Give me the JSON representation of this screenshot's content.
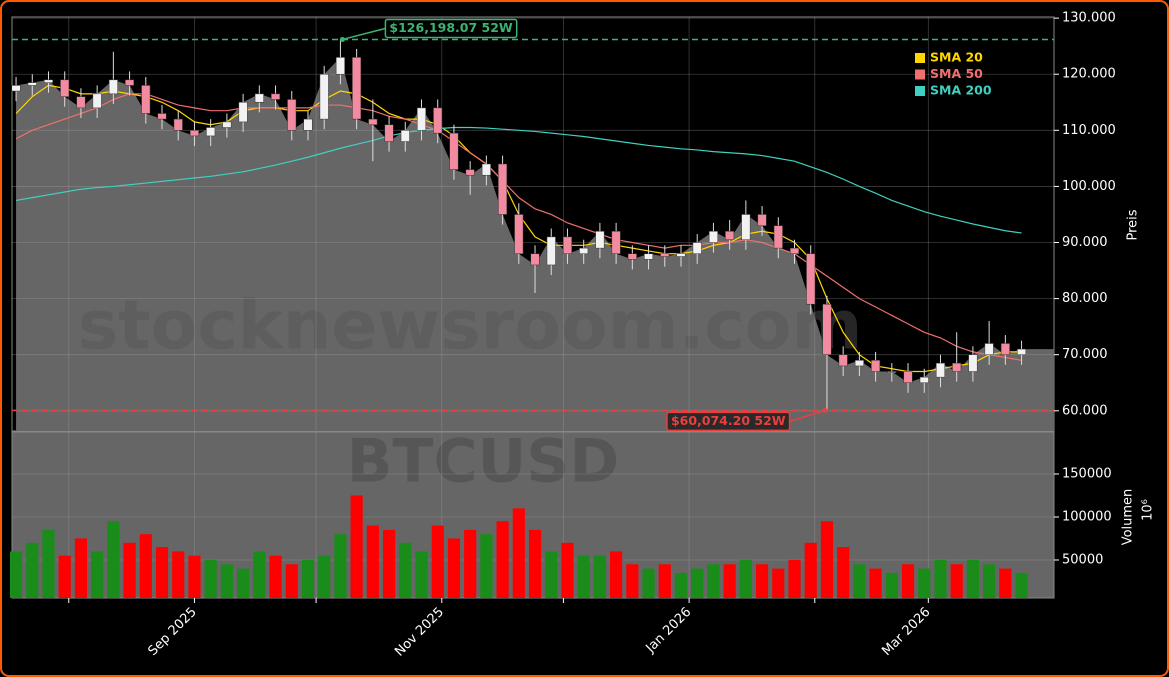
{
  "chart_data": {
    "type": "candlestick",
    "watermark": [
      "stocknewsroom.com",
      "BTCUSD"
    ],
    "y_label": "Preis",
    "x": [
      "2025-07-19",
      "2025-07-23",
      "2025-07-27",
      "2025-07-31",
      "2025-08-04",
      "2025-08-08",
      "2025-08-12",
      "2025-08-16",
      "2025-08-20",
      "2025-08-24",
      "2025-08-28",
      "2025-09-01",
      "2025-09-05",
      "2025-09-09",
      "2025-09-13",
      "2025-09-17",
      "2025-09-21",
      "2025-09-25",
      "2025-09-29",
      "2025-10-03",
      "2025-10-07",
      "2025-10-11",
      "2025-10-15",
      "2025-10-19",
      "2025-10-23",
      "2025-10-27",
      "2025-10-31",
      "2025-11-04",
      "2025-11-08",
      "2025-11-12",
      "2025-11-16",
      "2025-11-20",
      "2025-11-24",
      "2025-11-28",
      "2025-12-02",
      "2025-12-06",
      "2025-12-10",
      "2025-12-14",
      "2025-12-18",
      "2025-12-22",
      "2025-12-26",
      "2025-12-30",
      "2026-01-03",
      "2026-01-07",
      "2026-01-11",
      "2026-01-15",
      "2026-01-19",
      "2026-01-23",
      "2026-01-27",
      "2026-01-31",
      "2026-02-04",
      "2026-02-08",
      "2026-02-12",
      "2026-02-16",
      "2026-02-20",
      "2026-02-24",
      "2026-02-28",
      "2026-03-04",
      "2026-03-08",
      "2026-03-12",
      "2026-03-16",
      "2026-03-20",
      "2026-03-24"
    ],
    "open": [
      117000,
      118000,
      118500,
      119000,
      116000,
      114000,
      116500,
      119000,
      118000,
      113000,
      112000,
      110000,
      109000,
      110500,
      111500,
      115000,
      116500,
      115500,
      110000,
      112000,
      120000,
      123000,
      112000,
      111000,
      108000,
      110000,
      114000,
      109500,
      103000,
      102000,
      104000,
      95000,
      88000,
      86000,
      91000,
      88000,
      89000,
      92000,
      88000,
      87000,
      88000,
      87500,
      88000,
      90000,
      92000,
      90500,
      95000,
      93000,
      89000,
      88000,
      79000,
      70000,
      68000,
      69000,
      67000,
      67000,
      65000,
      66000,
      68500,
      67000,
      70000,
      72000,
      70000
    ],
    "high": [
      119500,
      120000,
      120500,
      120500,
      117500,
      118000,
      124000,
      120500,
      119500,
      114500,
      113500,
      111500,
      112000,
      113000,
      116500,
      118000,
      118000,
      117000,
      113500,
      121500,
      126198.07,
      124500,
      115500,
      112500,
      111500,
      115500,
      115500,
      111000,
      104500,
      105500,
      105500,
      97000,
      89500,
      92500,
      92500,
      90500,
      93500,
      93500,
      89500,
      89500,
      89500,
      89500,
      91500,
      93500,
      94000,
      97500,
      96500,
      94500,
      90500,
      89500,
      80500,
      71500,
      70500,
      70500,
      68500,
      68500,
      67500,
      70000,
      74000,
      71500,
      76000,
      73500,
      72500
    ],
    "low": [
      115200,
      116200,
      116700,
      114200,
      112200,
      112200,
      114700,
      116200,
      111200,
      110200,
      108200,
      107200,
      107200,
      108700,
      109700,
      113200,
      113700,
      108200,
      108200,
      110200,
      118200,
      110200,
      104500,
      106200,
      106200,
      108200,
      107700,
      101200,
      98500,
      100200,
      93200,
      86200,
      81000,
      84200,
      86200,
      86200,
      87200,
      86200,
      85200,
      85200,
      85700,
      85700,
      86200,
      88200,
      88700,
      88700,
      91200,
      87200,
      86200,
      77200,
      60074.2,
      66200,
      66200,
      65200,
      65200,
      63200,
      63200,
      64200,
      65200,
      65200,
      68200,
      68200,
      68200
    ],
    "close": [
      118000,
      118500,
      119000,
      116000,
      114000,
      116500,
      119000,
      118000,
      113000,
      112000,
      110000,
      109000,
      110500,
      111500,
      115000,
      116500,
      115500,
      110000,
      112000,
      120000,
      123000,
      112000,
      111000,
      108000,
      110000,
      114000,
      109500,
      103000,
      102000,
      104000,
      95000,
      88000,
      86000,
      91000,
      88000,
      89000,
      92000,
      88000,
      87000,
      88000,
      87500,
      88000,
      90000,
      92000,
      90500,
      95000,
      93000,
      89000,
      88000,
      79000,
      70000,
      68000,
      69000,
      67000,
      67000,
      65000,
      66000,
      68500,
      67000,
      70000,
      72000,
      70000,
      71000
    ],
    "volume": [
      60000,
      70000,
      85000,
      55000,
      75000,
      60000,
      95000,
      70000,
      80000,
      65000,
      60000,
      55000,
      50000,
      45000,
      40000,
      60000,
      55000,
      45000,
      50000,
      55000,
      80000,
      125000,
      90000,
      85000,
      70000,
      60000,
      90000,
      75000,
      85000,
      80000,
      95000,
      110000,
      85000,
      60000,
      70000,
      55000,
      55000,
      60000,
      45000,
      40000,
      45000,
      35000,
      40000,
      45000,
      45000,
      50000,
      45000,
      40000,
      50000,
      70000,
      95000,
      65000,
      45000,
      40000,
      35000,
      45000,
      40000,
      50000,
      45000,
      50000,
      45000,
      40000,
      35000
    ],
    "up_color": "#f2f2f2",
    "down_color": "#f28aa0",
    "volume_up_color": "#1a8c1a",
    "volume_down_color": "#ff0000",
    "series": [
      {
        "name": "SMA 20",
        "color": "#ffd700",
        "values": [
          113000,
          116000,
          118000,
          117500,
          116500,
          116500,
          117000,
          116500,
          116000,
          115000,
          113500,
          111500,
          111000,
          111500,
          113500,
          114000,
          114000,
          113500,
          113500,
          115500,
          117000,
          116500,
          115000,
          113000,
          112000,
          112000,
          111000,
          109000,
          106000,
          104000,
          101000,
          95000,
          91000,
          89500,
          89500,
          89500,
          90000,
          89500,
          89000,
          88500,
          88000,
          88000,
          88500,
          89500,
          90000,
          91500,
          92000,
          91500,
          90000,
          87000,
          80000,
          74000,
          70000,
          68000,
          67500,
          67000,
          67000,
          67500,
          68000,
          68500,
          70000,
          70500,
          70500
        ]
      },
      {
        "name": "SMA 50",
        "color": "#f07070",
        "values": [
          108500,
          110000,
          111000,
          112000,
          113000,
          114000,
          115500,
          116500,
          116500,
          115500,
          114500,
          114000,
          113500,
          113500,
          114000,
          114000,
          114000,
          114000,
          114000,
          114500,
          114500,
          114000,
          113500,
          112500,
          112000,
          111000,
          110000,
          108000,
          106000,
          104000,
          101000,
          98000,
          96000,
          95000,
          93500,
          92500,
          91500,
          90500,
          90000,
          89500,
          89000,
          89500,
          89500,
          90000,
          90000,
          90500,
          90000,
          89000,
          88000,
          86000,
          84000,
          82000,
          80000,
          78500,
          77000,
          75500,
          74000,
          73000,
          71500,
          70500,
          70000,
          69500,
          69000
        ]
      },
      {
        "name": "SMA 200",
        "color": "#40d0c0",
        "values": [
          97500,
          98000,
          98500,
          99000,
          99500,
          99800,
          100000,
          100300,
          100600,
          100900,
          101200,
          101500,
          101800,
          102200,
          102600,
          103200,
          103800,
          104500,
          105200,
          106000,
          106800,
          107500,
          108200,
          109000,
          109600,
          110000,
          110300,
          110500,
          110500,
          110400,
          110200,
          110000,
          109800,
          109500,
          109200,
          108900,
          108500,
          108100,
          107700,
          107300,
          107000,
          106700,
          106500,
          106200,
          106000,
          105800,
          105500,
          105000,
          104500,
          103500,
          102500,
          101300,
          100000,
          98800,
          97500,
          96500,
          95500,
          94700,
          94000,
          93300,
          92700,
          92100,
          91700
        ]
      }
    ],
    "reference_lines": [
      {
        "value": 126198.07,
        "label": "$126,198.07 52W",
        "color": "#3cb371",
        "x": "2025-10-07"
      },
      {
        "value": 60074.2,
        "label": "$60,074.20 52W",
        "color": "#e84040",
        "x": "2026-02-04"
      }
    ],
    "legend": "upper right",
    "grid": true,
    "xlim": [
      "2025-07-18",
      "2026-04-01"
    ],
    "xticks": [
      {
        "value": "2025-09-01",
        "label": "Sep 2025"
      },
      {
        "value": "2025-11-01",
        "label": "Nov 2025"
      },
      {
        "value": "2026-01-01",
        "label": "Jan 2026"
      },
      {
        "value": "2026-03-01",
        "label": "Mar 2026"
      }
    ],
    "xminor": [
      "2025-08-01",
      "2025-10-01",
      "2025-12-01",
      "2026-02-01"
    ],
    "ylim": [
      56400,
      130200
    ],
    "yticks": [
      {
        "value": 60000,
        "label": "60.000"
      },
      {
        "value": 70000,
        "label": "70.000"
      },
      {
        "value": 80000,
        "label": "80.000"
      },
      {
        "value": 90000,
        "label": "90.000"
      },
      {
        "value": 100000,
        "label": "100.000"
      },
      {
        "value": 110000,
        "label": "110.000"
      },
      {
        "value": 120000,
        "label": "120.000"
      },
      {
        "value": 130000,
        "label": "130.000"
      }
    ],
    "volume_axis": {
      "label": "Volumen",
      "offset_label": "10⁶",
      "ylim": [
        5800,
        198800
      ],
      "yticks": [
        50000,
        100000,
        150000
      ]
    }
  }
}
